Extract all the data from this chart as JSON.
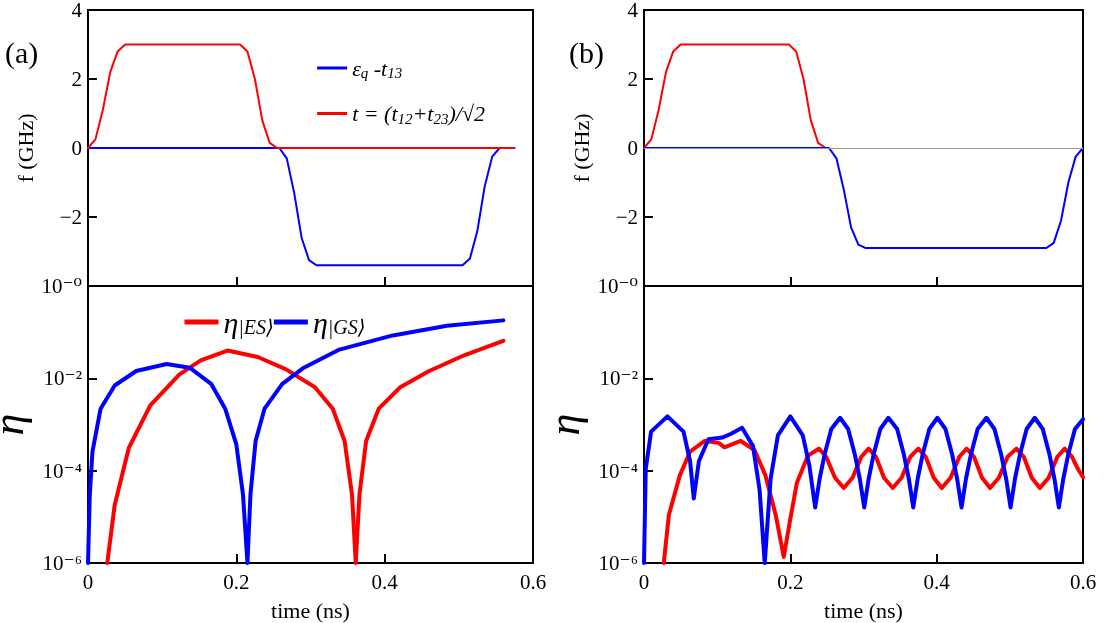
{
  "chart_data": [
    {
      "type": "line",
      "title": "(a)",
      "ylabel": "f (GHz)",
      "xlim": [
        0,
        0.6
      ],
      "xticks": [
        0,
        0.2,
        0.4,
        0.6
      ],
      "ylim": [
        -4,
        4
      ],
      "yticks": [
        {
          "value": -2,
          "label": "−2"
        },
        0,
        2,
        4
      ],
      "tick_labels": "y",
      "legend": "top right",
      "grid": false,
      "marker": "none",
      "line_style": "solid",
      "series": [
        {
          "name": "ε$_{q}$ -t$_{13}$",
          "color": "#0000ff",
          "x": [
            0,
            0.258,
            0.268,
            0.278,
            0.288,
            0.298,
            0.308,
            0.505,
            0.515,
            0.525,
            0.535,
            0.545,
            0.555,
            0.575
          ],
          "values": [
            0,
            0,
            -0.3,
            -1.3,
            -2.6,
            -3.25,
            -3.4,
            -3.4,
            -3.2,
            -2.4,
            -1.1,
            -0.25,
            0,
            0
          ]
        },
        {
          "name": "t = (t$_{12}$+t$_{23}$)/√2",
          "color": "#ff0000",
          "x": [
            0,
            0.01,
            0.02,
            0.03,
            0.04,
            0.05,
            0.205,
            0.215,
            0.225,
            0.235,
            0.245,
            0.255,
            0.575
          ],
          "values": [
            0,
            0.25,
            1.1,
            2.2,
            2.8,
            3,
            3,
            2.8,
            2.0,
            0.8,
            0.15,
            0,
            0
          ]
        }
      ]
    },
    {
      "type": "line",
      "title": "(b)",
      "ylabel": "f (GHz)",
      "xlim": [
        0,
        0.6
      ],
      "xticks": [
        0,
        0.2,
        0.4,
        0.6
      ],
      "ylim": [
        -4,
        4
      ],
      "yticks": [
        {
          "value": -2,
          "label": "−2"
        },
        0,
        2,
        4
      ],
      "tick_labels": "y",
      "grid": false,
      "marker": "none",
      "line_style": "solid",
      "ref_lines": [
        {
          "axis": "y",
          "value": 0,
          "color": "#999999"
        }
      ],
      "series": [
        {
          "color": "#ff0000",
          "x": [
            0,
            0.01,
            0.02,
            0.03,
            0.04,
            0.05,
            0.198,
            0.208,
            0.218,
            0.228,
            0.238,
            0.248
          ],
          "values": [
            0,
            0.25,
            1.1,
            2.2,
            2.8,
            3,
            3,
            2.8,
            2.0,
            0.8,
            0.15,
            0
          ]
        },
        {
          "color": "#0000ff",
          "x": [
            0,
            0.253,
            0.263,
            0.273,
            0.283,
            0.293,
            0.303,
            0.55,
            0.56,
            0.57,
            0.58,
            0.59,
            0.6
          ],
          "values": [
            0,
            0,
            -0.3,
            -1.2,
            -2.3,
            -2.8,
            -2.9,
            -2.9,
            -2.75,
            -2.1,
            -1.0,
            -0.25,
            0
          ]
        }
      ]
    },
    {
      "type": "line",
      "xlabel": "time (ns)",
      "ylabel": "η",
      "xlim": [
        0,
        0.6
      ],
      "xticks": [
        0,
        0.2,
        0.4,
        0.6
      ],
      "ylim": [
        1e-06,
        1
      ],
      "log": true,
      "yticks": [
        {
          "value": 1e-06,
          "label": "10⁻⁶"
        },
        {
          "value": 0.0001,
          "label": "10⁻⁴"
        },
        {
          "value": 0.01,
          "label": "10⁻²"
        },
        {
          "value": 1,
          "label": "10⁻⁰"
        }
      ],
      "legend": "top",
      "grid": false,
      "marker": "none",
      "line_style": "solid",
      "series": [
        {
          "name": "η$_{|ES⟩}$",
          "color": "#ff0000",
          "x": [
            0.026,
            0.036,
            0.055,
            0.084,
            0.123,
            0.152,
            0.188,
            0.229,
            0.267,
            0.306,
            0.33,
            0.346,
            0.356,
            0.361,
            0.366,
            0.375,
            0.392,
            0.421,
            0.46,
            0.508,
            0.56
          ],
          "values": [
            1e-06,
            1.8e-05,
            0.00031,
            0.0026,
            0.012,
            0.0245,
            0.04,
            0.029,
            0.0156,
            0.0064,
            0.0022,
            0.00044,
            3e-05,
            1e-06,
            3e-05,
            0.00044,
            0.0022,
            0.0064,
            0.0144,
            0.032,
            0.065
          ]
        },
        {
          "name": "η$_{|GS⟩}$",
          "color": "#0000ff",
          "x": [
            0,
            0.0024,
            0.006,
            0.017,
            0.036,
            0.065,
            0.106,
            0.137,
            0.166,
            0.185,
            0.2,
            0.209,
            0.215,
            0.219,
            0.226,
            0.238,
            0.262,
            0.291,
            0.339,
            0.411,
            0.484,
            0.56
          ],
          "values": [
            1e-06,
            3e-05,
            0.00026,
            0.0022,
            0.007,
            0.0144,
            0.0204,
            0.017,
            0.0076,
            0.0022,
            0.00037,
            3e-05,
            1e-06,
            3e-05,
            0.00044,
            0.0022,
            0.0076,
            0.017,
            0.042,
            0.085,
            0.138,
            0.18
          ]
        }
      ]
    },
    {
      "type": "line",
      "xlabel": "time (ns)",
      "ylabel": "η",
      "xlim": [
        0,
        0.6
      ],
      "xticks": [
        0,
        0.2,
        0.4,
        0.6
      ],
      "ylim": [
        1e-06,
        1
      ],
      "log": true,
      "yticks": [
        {
          "value": 1e-06,
          "label": "10⁻⁶"
        },
        {
          "value": 0.0001,
          "label": "10⁻⁴"
        },
        {
          "value": 0.01,
          "label": "10⁻²"
        },
        {
          "value": 1,
          "label": "10⁻⁰"
        }
      ],
      "grid": false,
      "marker": "none",
      "line_style": "solid",
      "series": [
        {
          "color": "#ff0000",
          "x": [
            0.027,
            0.034,
            0.049,
            0.063,
            0.083,
            0.102,
            0.11,
            0.132,
            0.151,
            0.166,
            0.18,
            0.191,
            0.2,
            0.209,
            0.224,
            0.239,
            0.249,
            0.261,
            0.273,
            0.285,
            0.297,
            0.307,
            0.317,
            0.328,
            0.34,
            0.352,
            0.364,
            0.375,
            0.385,
            0.396,
            0.407,
            0.419,
            0.431,
            0.441,
            0.451,
            0.462,
            0.473,
            0.485,
            0.497,
            0.509,
            0.519,
            0.53,
            0.541,
            0.553,
            0.565,
            0.575,
            0.585,
            0.593,
            0.6
          ],
          "values": [
            1e-06,
            1.1e-05,
            7.9e-05,
            0.00026,
            0.00044,
            0.0004,
            0.00032,
            0.00044,
            0.00028,
            7.9e-05,
            1.1e-05,
            1.35e-06,
            9e-06,
            5.5e-05,
            0.00021,
            0.0003,
            0.0002,
            7e-05,
            4.2e-05,
            7e-05,
            0.0002,
            0.0003,
            0.0002,
            7e-05,
            4.2e-05,
            7e-05,
            0.0002,
            0.0003,
            0.0002,
            7e-05,
            4.2e-05,
            7e-05,
            0.0002,
            0.0003,
            0.0002,
            7e-05,
            4.2e-05,
            7e-05,
            0.0002,
            0.0003,
            0.0002,
            7e-05,
            4.2e-05,
            7e-05,
            0.0002,
            0.0003,
            0.0002,
            0.00011,
            7.2e-05
          ]
        },
        {
          "color": "#0000ff",
          "x": [
            0,
            0.0024,
            0.0097,
            0.032,
            0.054,
            0.063,
            0.068,
            0.075,
            0.088,
            0.107,
            0.119,
            0.134,
            0.149,
            0.158,
            0.165,
            0.173,
            0.183,
            0.2,
            0.217,
            0.226,
            0.234,
            0.24,
            0.247,
            0.256,
            0.268,
            0.279,
            0.288,
            0.295,
            0.301,
            0.307,
            0.314,
            0.323,
            0.334,
            0.346,
            0.355,
            0.362,
            0.368,
            0.374,
            0.381,
            0.39,
            0.401,
            0.412,
            0.421,
            0.428,
            0.434,
            0.44,
            0.447,
            0.456,
            0.468,
            0.479,
            0.488,
            0.495,
            0.501,
            0.507,
            0.514,
            0.523,
            0.534,
            0.545,
            0.554,
            0.561,
            0.567,
            0.573,
            0.58,
            0.589,
            0.6
          ],
          "values": [
            1e-06,
            0.00011,
            0.0007,
            0.0015,
            0.0007,
            0.00016,
            2.5e-05,
            0.00016,
            0.00048,
            0.00052,
            0.00063,
            0.00085,
            0.00034,
            3.8e-05,
            1e-06,
            6.6e-05,
            0.00058,
            0.0015,
            0.00058,
            0.00013,
            1.6e-05,
            6.6e-05,
            0.00023,
            0.0008,
            0.0014,
            0.0008,
            0.00023,
            6.6e-05,
            1.6e-05,
            6.6e-05,
            0.00023,
            0.0008,
            0.0014,
            0.0008,
            0.00023,
            6.6e-05,
            1.6e-05,
            6.6e-05,
            0.00023,
            0.0008,
            0.0014,
            0.0008,
            0.00023,
            6.6e-05,
            1.6e-05,
            6.6e-05,
            0.00023,
            0.0008,
            0.0014,
            0.0008,
            0.00023,
            6.6e-05,
            1.6e-05,
            6.6e-05,
            0.00023,
            0.0008,
            0.0014,
            0.0008,
            0.00023,
            6.6e-05,
            1.6e-05,
            6.6e-05,
            0.00023,
            0.0008,
            0.0013
          ]
        }
      ]
    }
  ]
}
